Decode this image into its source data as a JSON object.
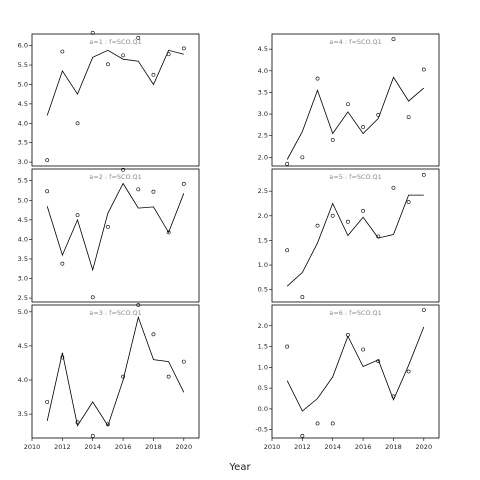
{
  "figure": {
    "xlabel": "Year"
  },
  "chart_data": [
    {
      "type": "line",
      "label": "a=1 : f=SCO.Q1",
      "xlim": [
        2010,
        2021
      ],
      "ylim": [
        2.9,
        6.3
      ],
      "yticks": [
        3.0,
        3.5,
        4.0,
        4.5,
        5.0,
        5.5,
        6.0
      ],
      "tick_decimals": 1,
      "show_x_ticks": false,
      "x": [
        2011,
        2012,
        2013,
        2014,
        2015,
        2016,
        2017,
        2018,
        2019,
        2020
      ],
      "fitted": [
        4.2,
        5.35,
        4.75,
        5.7,
        5.88,
        5.65,
        5.6,
        5.0,
        5.88,
        5.78
      ],
      "observed": [
        3.05,
        5.85,
        4.0,
        6.33,
        5.52,
        5.75,
        6.2,
        5.25,
        5.78,
        5.93
      ]
    },
    {
      "type": "line",
      "label": "a=4 : f=SCO.Q1",
      "xlim": [
        2010,
        2021
      ],
      "ylim": [
        1.8,
        4.85
      ],
      "yticks": [
        2.0,
        2.5,
        3.0,
        3.5,
        4.0,
        4.5
      ],
      "tick_decimals": 1,
      "show_x_ticks": false,
      "x": [
        2011,
        2012,
        2013,
        2014,
        2015,
        2016,
        2017,
        2018,
        2019,
        2020
      ],
      "fitted": [
        1.95,
        2.6,
        3.55,
        2.55,
        3.05,
        2.55,
        2.9,
        3.85,
        3.3,
        3.6
      ],
      "observed": [
        1.85,
        2.0,
        3.82,
        2.4,
        3.23,
        2.7,
        2.98,
        4.73,
        2.93,
        4.03
      ]
    },
    {
      "type": "line",
      "label": "a=2 : f=SCO.Q1",
      "xlim": [
        2010,
        2021
      ],
      "ylim": [
        2.4,
        5.8
      ],
      "yticks": [
        2.5,
        3.0,
        3.5,
        4.0,
        4.5,
        5.0,
        5.5
      ],
      "tick_decimals": 1,
      "show_x_ticks": false,
      "x": [
        2011,
        2012,
        2013,
        2014,
        2015,
        2016,
        2017,
        2018,
        2019,
        2020
      ],
      "fitted": [
        4.85,
        3.6,
        4.5,
        3.22,
        4.67,
        5.43,
        4.8,
        4.83,
        4.18,
        5.18
      ],
      "observed": [
        5.23,
        3.38,
        4.62,
        2.52,
        4.32,
        5.78,
        5.28,
        5.22,
        4.18,
        5.42
      ]
    },
    {
      "type": "line",
      "label": "a=5 : f=SCO.Q1",
      "xlim": [
        2010,
        2021
      ],
      "ylim": [
        0.25,
        2.95
      ],
      "yticks": [
        0.5,
        1.0,
        1.5,
        2.0,
        2.5
      ],
      "tick_decimals": 1,
      "show_x_ticks": false,
      "x": [
        2011,
        2012,
        2013,
        2014,
        2015,
        2016,
        2017,
        2018,
        2019,
        2020
      ],
      "fitted": [
        0.57,
        0.85,
        1.45,
        2.25,
        1.6,
        1.97,
        1.55,
        1.62,
        2.42,
        2.42
      ],
      "observed": [
        1.3,
        0.35,
        1.8,
        2.0,
        1.88,
        2.1,
        1.58,
        2.57,
        2.28,
        2.83
      ]
    },
    {
      "type": "line",
      "label": "a=3 : f=SCO.Q1",
      "xlim": [
        2010,
        2021
      ],
      "ylim": [
        3.15,
        5.1
      ],
      "yticks": [
        3.5,
        4.0,
        4.5,
        5.0
      ],
      "tick_decimals": 1,
      "show_x_ticks": true,
      "xticks": [
        2010,
        2012,
        2014,
        2016,
        2018,
        2020
      ],
      "x": [
        2011,
        2012,
        2013,
        2014,
        2015,
        2016,
        2017,
        2018,
        2019,
        2020
      ],
      "fitted": [
        3.4,
        4.4,
        3.33,
        3.68,
        3.33,
        4.0,
        4.92,
        4.3,
        4.27,
        3.82
      ],
      "observed": [
        3.68,
        4.33,
        3.38,
        3.18,
        3.35,
        4.05,
        5.1,
        4.67,
        4.05,
        4.27
      ]
    },
    {
      "type": "line",
      "label": "a=6 : f=SCO.Q1",
      "xlim": [
        2010,
        2021
      ],
      "ylim": [
        -0.7,
        2.5
      ],
      "yticks": [
        -0.5,
        0.0,
        0.5,
        1.0,
        1.5,
        2.0
      ],
      "tick_decimals": 1,
      "show_x_ticks": true,
      "xticks": [
        2010,
        2012,
        2014,
        2016,
        2018,
        2020
      ],
      "x": [
        2011,
        2012,
        2013,
        2014,
        2015,
        2016,
        2017,
        2018,
        2019,
        2020
      ],
      "fitted": [
        0.68,
        -0.05,
        0.25,
        0.77,
        1.75,
        1.02,
        1.18,
        0.22,
        1.05,
        1.97
      ],
      "observed": [
        1.5,
        -0.65,
        -0.35,
        -0.35,
        1.78,
        1.43,
        1.15,
        0.3,
        0.9,
        2.38
      ]
    }
  ]
}
